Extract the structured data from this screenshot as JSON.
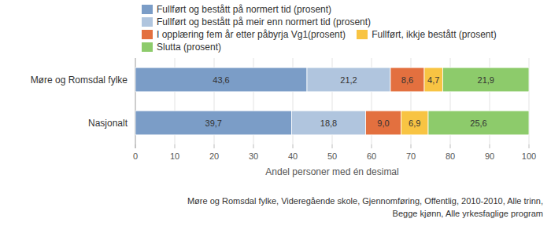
{
  "chart_data": {
    "type": "bar",
    "orientation": "horizontal",
    "stacked": true,
    "data_labels": true,
    "grid": true,
    "legend": "top",
    "subtitle": "Møre og Romsdal fylke, Videregående skole, Gjennomføring, Offentlig, 2010-2010, Alle trinn, Begge kjønn, Alle yrkesfaglige program",
    "x_label": "Andel personer med én desimal",
    "categories": [
      "Møre og Romsdal fylke",
      "Nasjonalt"
    ],
    "xlim": [
      0,
      100
    ],
    "xticks": [
      0,
      10,
      20,
      30,
      40,
      50,
      60,
      70,
      80,
      90,
      100
    ],
    "series": [
      {
        "name": "Fullført og bestått på normert tid (prosent)",
        "color": "#7b9dc7",
        "values": [
          43.6,
          39.7
        ],
        "value_labels": [
          "43,6",
          "39,7"
        ]
      },
      {
        "name": "Fullført og bestått på meir enn normert tid (prosent)",
        "color": "#b0c5de",
        "values": [
          21.2,
          18.8
        ],
        "value_labels": [
          "21,2",
          "18,8"
        ]
      },
      {
        "name": "I opplæring fem år etter påbyrja Vg1(prosent)",
        "color": "#e3703f",
        "values": [
          8.6,
          9.0
        ],
        "value_labels": [
          "8,6",
          "9,0"
        ]
      },
      {
        "name": "Fullført, ikkje bestått (prosent)",
        "color": "#f8c443",
        "values": [
          4.7,
          6.9
        ],
        "value_labels": [
          "4,7",
          "6,9"
        ]
      },
      {
        "name": "Slutta (prosent)",
        "color": "#8dcb6b",
        "values": [
          21.9,
          25.6
        ],
        "value_labels": [
          "21,9",
          "25,6"
        ]
      }
    ]
  }
}
